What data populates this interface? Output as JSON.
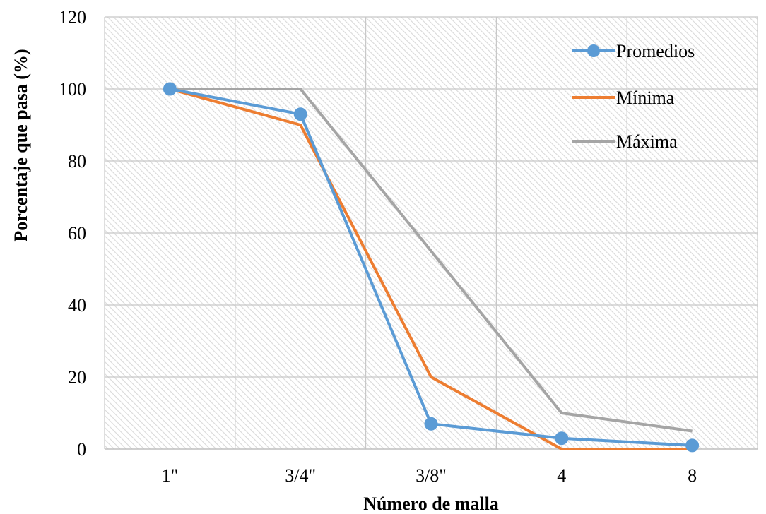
{
  "chart_data": {
    "type": "line",
    "title": "",
    "xlabel": "Número de malla",
    "ylabel": "Porcentaje que pasa (%)",
    "categories": [
      "1\"",
      "3/4\"",
      "3/8\"",
      "4",
      "8"
    ],
    "ylim": [
      0,
      120
    ],
    "yticks": [
      "0",
      "20",
      "40",
      "60",
      "80",
      "100",
      "120"
    ],
    "grid": true,
    "legend_position": "top-right",
    "series": [
      {
        "name": "Promedios",
        "values": [
          100,
          93,
          7,
          3,
          1
        ],
        "color": "#5B9BD5",
        "markers": true
      },
      {
        "name": "Mínima",
        "values": [
          100,
          90,
          20,
          0,
          0
        ],
        "color": "#ED7D31",
        "markers": false
      },
      {
        "name": "Máxima",
        "values": [
          100,
          100,
          55,
          10,
          5
        ],
        "color": "#A5A5A5",
        "markers": false
      }
    ]
  }
}
